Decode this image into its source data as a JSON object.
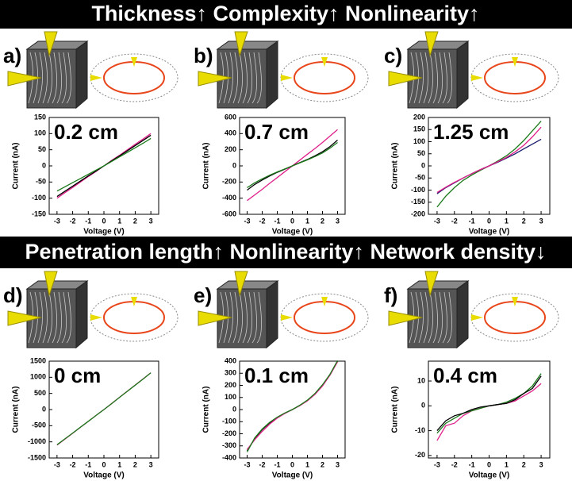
{
  "banners": [
    "Thickness↑ Complexity↑ Nonlinearity↑",
    "Penetration length↑ Nonlinearity↑ Network density↓"
  ],
  "panel_labels": [
    "a)",
    "b)",
    "c)",
    "d)",
    "e)",
    "f)"
  ],
  "chart_data": [
    {
      "type": "line",
      "annotation": "0.2 cm",
      "xlabel": "Voltage (V)",
      "ylabel": "Current (nA)",
      "x": [
        -3,
        -2.5,
        -2,
        -1.5,
        -1,
        -0.5,
        0,
        0.5,
        1,
        1.5,
        2,
        2.5,
        3
      ],
      "xlim": [
        -3.5,
        3.5
      ],
      "xticks": [
        -3,
        -2,
        -1,
        0,
        1,
        2,
        3
      ],
      "ylim": [
        -150,
        150
      ],
      "yticks": [
        -150,
        -100,
        -50,
        0,
        50,
        100,
        150
      ],
      "series": [
        {
          "color": "#e0208a",
          "values": [
            -100,
            -83,
            -67,
            -50,
            -33,
            -17,
            0,
            17,
            33,
            50,
            67,
            83,
            100
          ]
        },
        {
          "color": "#000000",
          "values": [
            -95,
            -79,
            -63,
            -47,
            -31,
            -16,
            0,
            16,
            31,
            47,
            63,
            79,
            95
          ]
        },
        {
          "color": "#1a7a1a",
          "values": [
            -78,
            -65,
            -52,
            -39,
            -26,
            -13,
            0,
            14,
            28,
            42,
            56,
            70,
            85
          ]
        }
      ]
    },
    {
      "type": "line",
      "annotation": "0.7 cm",
      "xlabel": "Voltage (V)",
      "ylabel": "Current (nA)",
      "x": [
        -3,
        -2.5,
        -2,
        -1.5,
        -1,
        -0.5,
        0,
        0.5,
        1,
        1.5,
        2,
        2.5,
        3
      ],
      "xlim": [
        -3.5,
        3.5
      ],
      "xticks": [
        -3,
        -2,
        -1,
        0,
        1,
        2,
        3
      ],
      "ylim": [
        -600,
        600
      ],
      "yticks": [
        -600,
        -400,
        -200,
        0,
        200,
        400,
        600
      ],
      "series": [
        {
          "color": "#e0208a",
          "values": [
            -430,
            -360,
            -290,
            -215,
            -145,
            -72,
            0,
            72,
            145,
            215,
            290,
            370,
            450
          ]
        },
        {
          "color": "#000000",
          "values": [
            -300,
            -230,
            -175,
            -125,
            -80,
            -40,
            0,
            40,
            80,
            125,
            175,
            240,
            320
          ]
        },
        {
          "color": "#1a7a1a",
          "values": [
            -270,
            -210,
            -160,
            -115,
            -75,
            -37,
            0,
            37,
            75,
            115,
            160,
            220,
            290
          ]
        }
      ]
    },
    {
      "type": "line",
      "annotation": "1.25 cm",
      "xlabel": "Voltage (V)",
      "ylabel": "Current (nA)",
      "x": [
        -3,
        -2.5,
        -2,
        -1.5,
        -1,
        -0.5,
        0,
        0.5,
        1,
        1.5,
        2,
        2.5,
        3
      ],
      "xlim": [
        -3.5,
        3.5
      ],
      "xticks": [
        -3,
        -2,
        -1,
        0,
        1,
        2,
        3
      ],
      "ylim": [
        -200,
        200
      ],
      "yticks": [
        -200,
        -150,
        -100,
        -50,
        0,
        50,
        100,
        150,
        200
      ],
      "series": [
        {
          "color": "#1a7a1a",
          "values": [
            -170,
            -125,
            -90,
            -60,
            -38,
            -18,
            0,
            20,
            42,
            70,
            105,
            145,
            185
          ]
        },
        {
          "color": "#1a1a6e",
          "values": [
            -115,
            -90,
            -70,
            -50,
            -32,
            -15,
            0,
            15,
            32,
            50,
            70,
            90,
            110
          ]
        },
        {
          "color": "#e0208a",
          "values": [
            -110,
            -88,
            -68,
            -50,
            -32,
            -15,
            0,
            17,
            35,
            58,
            85,
            120,
            160
          ]
        }
      ]
    },
    {
      "type": "line",
      "annotation": "0 cm",
      "xlabel": "Voltage (V)",
      "ylabel": "Current (nA)",
      "x": [
        -3,
        -2.5,
        -2,
        -1.5,
        -1,
        -0.5,
        0,
        0.5,
        1,
        1.5,
        2,
        2.5,
        3
      ],
      "xlim": [
        -3.5,
        3.5
      ],
      "xticks": [
        -3,
        -2,
        -1,
        0,
        1,
        2,
        3
      ],
      "ylim": [
        -1500,
        1500
      ],
      "yticks": [
        -1500,
        -1000,
        -500,
        0,
        500,
        1000,
        1500
      ],
      "series": [
        {
          "color": "#e0208a",
          "values": [
            -1100,
            -917,
            -733,
            -550,
            -367,
            -183,
            0,
            190,
            380,
            570,
            760,
            950,
            1140
          ]
        },
        {
          "color": "#1a7a1a",
          "values": [
            -1090,
            -910,
            -728,
            -546,
            -364,
            -182,
            0,
            188,
            378,
            567,
            756,
            945,
            1135
          ]
        }
      ]
    },
    {
      "type": "line",
      "annotation": "0.1 cm",
      "xlabel": "Voltage (V)",
      "ylabel": "Current (nA)",
      "x": [
        -3,
        -2.5,
        -2,
        -1.5,
        -1,
        -0.5,
        0,
        0.5,
        1,
        1.5,
        2,
        2.5,
        3
      ],
      "xlim": [
        -3.5,
        3.5
      ],
      "xticks": [
        -3,
        -2,
        -1,
        0,
        1,
        2,
        3
      ],
      "ylim": [
        -400,
        400
      ],
      "yticks": [
        -400,
        -300,
        -200,
        -100,
        0,
        100,
        200,
        300,
        400
      ],
      "series": [
        {
          "color": "#000000",
          "values": [
            -340,
            -240,
            -165,
            -110,
            -65,
            -30,
            0,
            35,
            75,
            130,
            200,
            290,
            400
          ]
        },
        {
          "color": "#e0208a",
          "values": [
            -330,
            -250,
            -180,
            -120,
            -70,
            -32,
            0,
            33,
            72,
            125,
            195,
            285,
            395
          ]
        },
        {
          "color": "#1a7a1a",
          "values": [
            -350,
            -235,
            -160,
            -105,
            -62,
            -28,
            0,
            36,
            78,
            133,
            205,
            292,
            405
          ]
        }
      ]
    },
    {
      "type": "line",
      "annotation": "0.4 cm",
      "xlabel": "Voltage (V)",
      "ylabel": "Current (nA)",
      "x": [
        -3,
        -2.5,
        -2,
        -1.5,
        -1,
        -0.5,
        0,
        0.5,
        1,
        1.5,
        2,
        2.5,
        3
      ],
      "xlim": [
        -3.5,
        3.5
      ],
      "xticks": [
        -3,
        -2,
        -1,
        0,
        1,
        2,
        3
      ],
      "ylim": [
        -21,
        18
      ],
      "yticks": [
        -20,
        -10,
        0,
        10
      ],
      "series": [
        {
          "color": "#e0208a",
          "values": [
            -14,
            -8,
            -7,
            -4,
            -2,
            -1,
            0,
            0.5,
            1,
            2,
            4,
            6,
            9
          ]
        },
        {
          "color": "#1a7a1a",
          "values": [
            -11,
            -7,
            -5,
            -3,
            -2,
            -1,
            0,
            0.5,
            1.5,
            3,
            5,
            8,
            13
          ]
        },
        {
          "color": "#000000",
          "values": [
            -10,
            -6,
            -4,
            -3,
            -1.5,
            -0.5,
            0,
            0.5,
            1,
            2.5,
            5,
            7,
            12
          ]
        }
      ]
    }
  ]
}
